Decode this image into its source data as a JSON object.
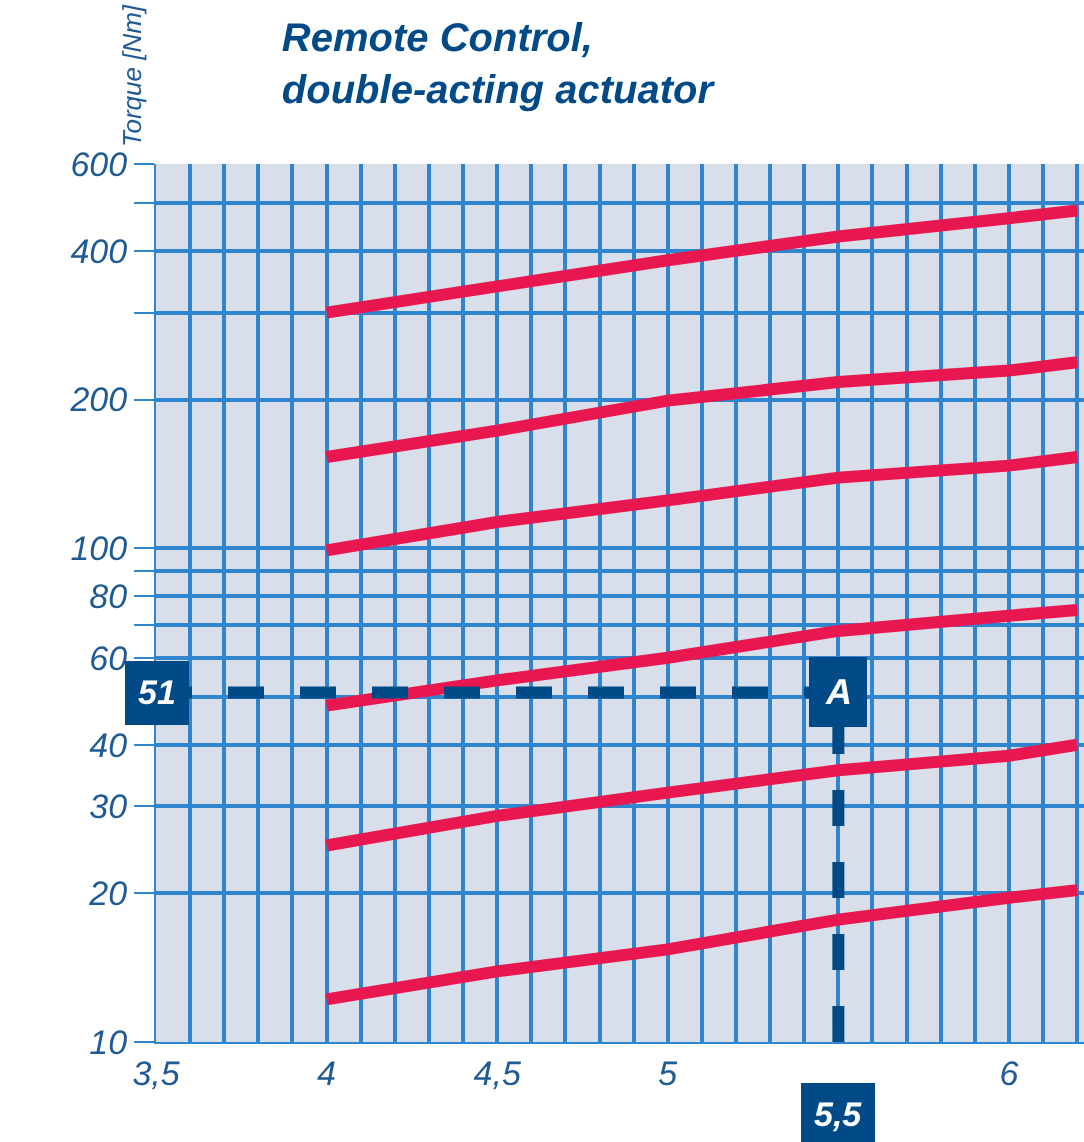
{
  "chart_data": {
    "type": "line",
    "title": "Remote Control,\ndouble-acting actuator",
    "ylabel": "Torque [Nm]",
    "x": [
      4,
      4.5,
      5,
      5.5,
      6,
      6.2
    ],
    "series": [
      {
        "color": "#e8174f",
        "values": [
          300,
          339,
          383,
          428,
          466,
          483
        ]
      },
      {
        "color": "#e8174f",
        "values": [
          153,
          173,
          199,
          217,
          229,
          238
        ]
      },
      {
        "color": "#e8174f",
        "values": [
          99,
          113,
          125,
          139,
          147,
          153
        ]
      },
      {
        "color": "#e8174f",
        "values": [
          48,
          54,
          60,
          68,
          73,
          75
        ]
      },
      {
        "color": "#e8174f",
        "values": [
          25,
          28.7,
          32,
          35.5,
          38,
          40
        ]
      },
      {
        "color": "#e8174f",
        "values": [
          12.2,
          13.9,
          15.4,
          17.7,
          19.6,
          20.3
        ]
      }
    ],
    "log": "y",
    "grid": true,
    "marker": "none",
    "line_style": "solid",
    "xlim": [
      3.5,
      6.22
    ],
    "ylim": [
      10,
      600
    ],
    "xticks": [
      {
        "value": 3.5,
        "label": "3,5"
      },
      {
        "value": 3.6,
        "label": null
      },
      {
        "value": 3.7,
        "label": null
      },
      {
        "value": 3.8,
        "label": null
      },
      {
        "value": 3.9,
        "label": null
      },
      4,
      {
        "value": 4.1,
        "label": null
      },
      {
        "value": 4.2,
        "label": null
      },
      {
        "value": 4.3,
        "label": null
      },
      {
        "value": 4.4,
        "label": null
      },
      {
        "value": 4.5,
        "label": "4,5"
      },
      {
        "value": 4.6,
        "label": null
      },
      {
        "value": 4.7,
        "label": null
      },
      {
        "value": 4.8,
        "label": null
      },
      {
        "value": 4.9,
        "label": null
      },
      5,
      {
        "value": 5.1,
        "label": null
      },
      {
        "value": 5.2,
        "label": null
      },
      {
        "value": 5.3,
        "label": null
      },
      {
        "value": 5.4,
        "label": null
      },
      {
        "value": 5.5,
        "label": null
      },
      {
        "value": 5.6,
        "label": null
      },
      {
        "value": 5.7,
        "label": null
      },
      {
        "value": 5.8,
        "label": null
      },
      {
        "value": 5.9,
        "label": null
      },
      6,
      {
        "value": 6.1,
        "label": null
      },
      {
        "value": 6.2,
        "label": null
      }
    ],
    "yticks": [
      10,
      20,
      30,
      40,
      {
        "value": 50,
        "label": null
      },
      60,
      {
        "value": 70,
        "label": null
      },
      80,
      {
        "value": 90,
        "label": null
      },
      100,
      200,
      {
        "value": 300,
        "label": null
      },
      400,
      {
        "value": 500,
        "label": null
      },
      600
    ],
    "ref_lines": [
      {
        "axis": "y",
        "value": 51,
        "label": "51",
        "color": "#004a87",
        "line_style": "dashed"
      },
      {
        "axis": "x",
        "value": 5.5,
        "label": "5,5",
        "color": "#004a87",
        "line_style": "dashed"
      }
    ],
    "annotations": [
      {
        "text": "A",
        "x": 5.5,
        "y": 51
      }
    ]
  }
}
